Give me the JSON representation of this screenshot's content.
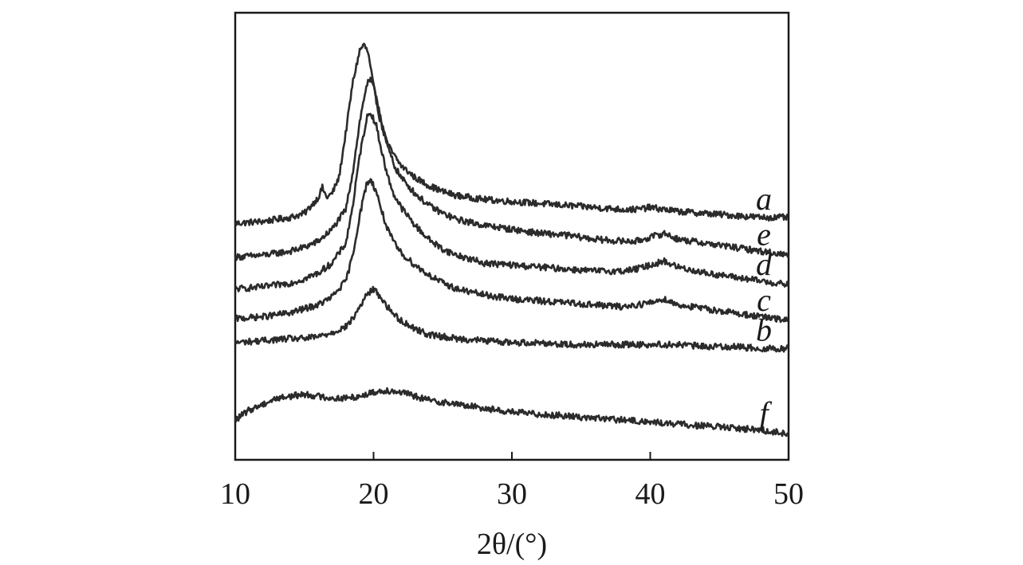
{
  "chart_data": {
    "type": "line",
    "xlabel": "2θ/(°)",
    "ylabel": "",
    "xlim": [
      10,
      50
    ],
    "xticks": [
      10,
      20,
      30,
      40,
      50
    ],
    "y_axis_ticks_shown": false,
    "grid": false,
    "note_y": "Intensity in arbitrary units; curves stacked vertically with offsets.",
    "series": [
      {
        "name": "a",
        "x": [
          10,
          12,
          14,
          15,
          16,
          16.3,
          16.6,
          17,
          17.5,
          18,
          18.5,
          19,
          19.3,
          19.6,
          20,
          20.5,
          21,
          21.5,
          22,
          23,
          24,
          25,
          26,
          28,
          30,
          32,
          34,
          36,
          38,
          39,
          40,
          41,
          42,
          44,
          46,
          48,
          50
        ],
        "y": [
          7.9,
          8.0,
          8.2,
          8.4,
          9.2,
          9.7,
          9.2,
          9.4,
          10.2,
          12.5,
          15.0,
          16.6,
          16.9,
          16.5,
          14.8,
          13.0,
          11.9,
          11.3,
          10.8,
          10.2,
          9.8,
          9.5,
          9.3,
          9.1,
          9.0,
          8.9,
          8.8,
          8.7,
          8.6,
          8.6,
          8.7,
          8.6,
          8.5,
          8.4,
          8.3,
          8.2,
          8.2
        ]
      },
      {
        "name": "e",
        "x": [
          10,
          12,
          14,
          15,
          16,
          17,
          18,
          18.5,
          19,
          19.5,
          19.8,
          20.2,
          20.6,
          21,
          21.5,
          22,
          23,
          24,
          25,
          26,
          28,
          30,
          32,
          34,
          36,
          38,
          39,
          40,
          41,
          42,
          44,
          46,
          48,
          50
        ],
        "y": [
          6.2,
          6.3,
          6.5,
          6.7,
          7.0,
          7.6,
          8.6,
          10.5,
          13.0,
          14.9,
          15.1,
          14.3,
          13.0,
          11.8,
          10.8,
          10.2,
          9.4,
          8.8,
          8.4,
          8.1,
          7.8,
          7.6,
          7.4,
          7.3,
          7.1,
          7.0,
          7.0,
          7.2,
          7.4,
          7.1,
          6.9,
          6.7,
          6.5,
          6.3
        ]
      },
      {
        "name": "d",
        "x": [
          10,
          12,
          14,
          15,
          16,
          17,
          18,
          18.5,
          19,
          19.5,
          19.8,
          20.2,
          20.6,
          21,
          21.5,
          22,
          23,
          24,
          25,
          26,
          28,
          30,
          32,
          34,
          36,
          38,
          39,
          40,
          41,
          42,
          44,
          46,
          48,
          50
        ],
        "y": [
          4.6,
          4.7,
          4.9,
          5.1,
          5.4,
          5.9,
          6.9,
          8.8,
          11.3,
          13.2,
          13.5,
          12.8,
          11.5,
          10.3,
          9.3,
          8.7,
          7.8,
          7.1,
          6.6,
          6.3,
          5.9,
          5.8,
          5.7,
          5.6,
          5.5,
          5.5,
          5.6,
          5.8,
          6.0,
          5.7,
          5.4,
          5.2,
          5.0,
          4.8
        ]
      },
      {
        "name": "c",
        "x": [
          10,
          12,
          14,
          15,
          16,
          17,
          18,
          18.5,
          19,
          19.5,
          19.8,
          20.2,
          20.6,
          21,
          21.5,
          22,
          23,
          24,
          25,
          26,
          28,
          30,
          32,
          34,
          36,
          38,
          39,
          40,
          41,
          42,
          44,
          46,
          48,
          50
        ],
        "y": [
          3.1,
          3.2,
          3.4,
          3.6,
          3.8,
          4.2,
          5.0,
          6.3,
          8.3,
          9.9,
          10.1,
          9.5,
          8.5,
          7.6,
          6.9,
          6.4,
          5.8,
          5.3,
          4.9,
          4.6,
          4.3,
          4.1,
          4.0,
          3.9,
          3.8,
          3.7,
          3.8,
          3.9,
          4.1,
          3.8,
          3.6,
          3.4,
          3.2,
          3.0
        ]
      },
      {
        "name": "b",
        "x": [
          10,
          12,
          14,
          15,
          16,
          17,
          18,
          18.5,
          19,
          19.5,
          20,
          20.5,
          21,
          21.5,
          22,
          23,
          24,
          25,
          26,
          28,
          30,
          32,
          34,
          36,
          38,
          40,
          42,
          44,
          46,
          48,
          50
        ],
        "y": [
          1.9,
          2.0,
          2.1,
          2.1,
          2.2,
          2.4,
          2.7,
          3.1,
          3.7,
          4.3,
          4.6,
          4.2,
          3.7,
          3.3,
          3.0,
          2.6,
          2.3,
          2.2,
          2.1,
          2.0,
          1.9,
          1.9,
          1.8,
          1.8,
          1.8,
          1.8,
          1.8,
          1.7,
          1.7,
          1.6,
          1.6
        ]
      },
      {
        "name": "f",
        "x": [
          10,
          11,
          12,
          13,
          14,
          15,
          16,
          17,
          18,
          19,
          20,
          21,
          22,
          23,
          24,
          26,
          28,
          30,
          32,
          34,
          36,
          38,
          40,
          42,
          44,
          46,
          48,
          50
        ],
        "y": [
          -2.0,
          -1.5,
          -1.2,
          -0.9,
          -0.8,
          -0.7,
          -0.8,
          -0.9,
          -0.9,
          -0.8,
          -0.6,
          -0.5,
          -0.6,
          -0.8,
          -1.0,
          -1.2,
          -1.4,
          -1.6,
          -1.7,
          -1.8,
          -1.9,
          -2.0,
          -2.1,
          -2.2,
          -2.3,
          -2.4,
          -2.5,
          -2.7
        ]
      }
    ]
  },
  "style": {
    "line_color": "#2b2b2b",
    "axis_color": "#1a1a1a",
    "background": "#ffffff"
  }
}
